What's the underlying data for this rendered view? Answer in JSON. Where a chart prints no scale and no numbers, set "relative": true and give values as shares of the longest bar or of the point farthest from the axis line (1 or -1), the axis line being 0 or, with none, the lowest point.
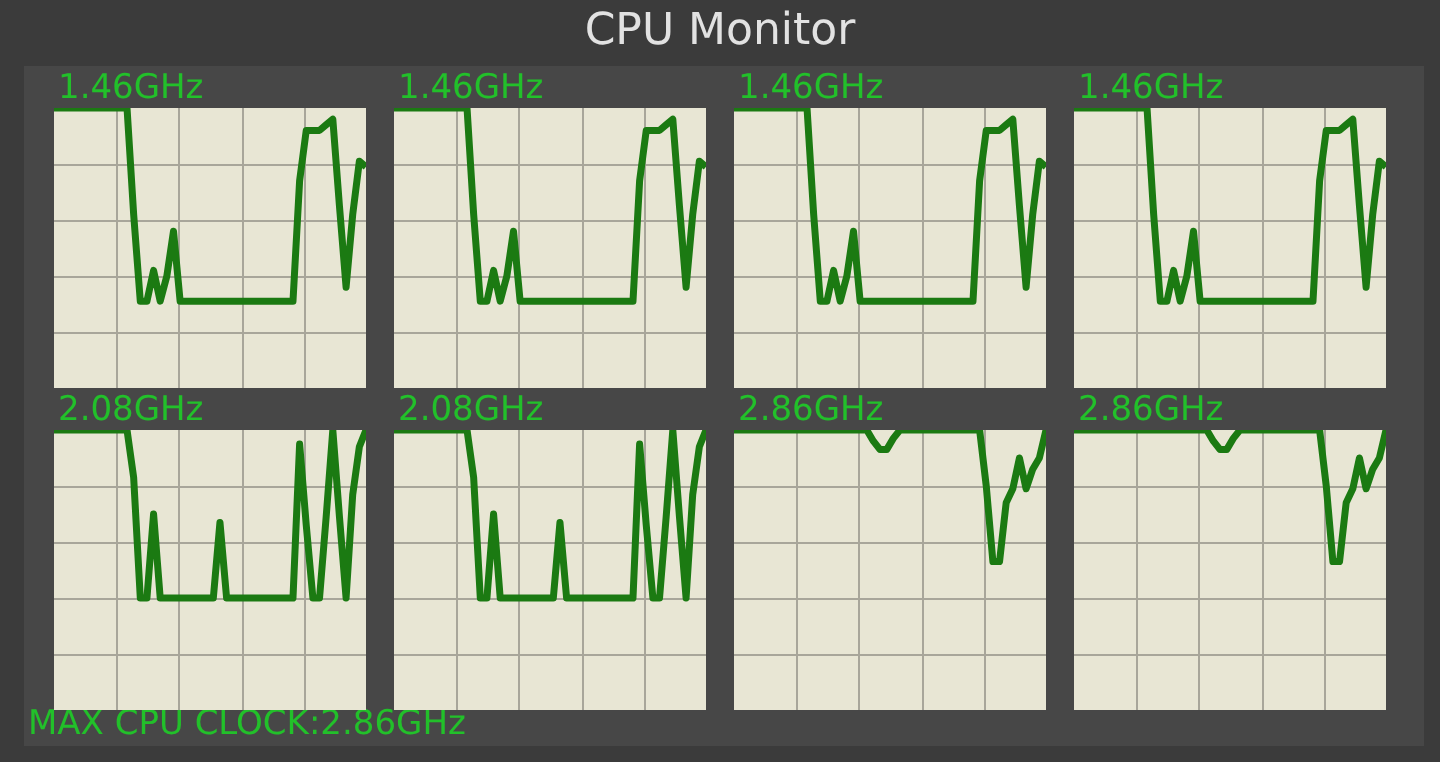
{
  "chart_data": [
    {
      "type": "other",
      "title": "CPU Monitor",
      "annotations": [
        "MAX CPU CLOCK:2.86GHz"
      ]
    },
    {
      "type": "line",
      "title": "1.46GHz",
      "relative": true,
      "grid": true,
      "marker": "none",
      "color": "#1b7a12",
      "categories": [
        null,
        null,
        null,
        null,
        null,
        null,
        null,
        null,
        null,
        null,
        null,
        null,
        null,
        null,
        null,
        null,
        null,
        null,
        null,
        null,
        null,
        null,
        null,
        null,
        null,
        null,
        null,
        null,
        null,
        null,
        null,
        null,
        null,
        null,
        null,
        null,
        null,
        null,
        null,
        null,
        null,
        null,
        null,
        null,
        null,
        null,
        null,
        null
      ],
      "values": [
        1,
        1,
        1,
        1,
        1,
        1,
        1,
        1,
        1,
        1,
        1,
        1,
        0.62,
        0.31,
        0.31,
        0.42,
        0.31,
        0.4,
        0.56,
        0.31,
        0.31,
        0.31,
        0.31,
        0.31,
        0.31,
        0.31,
        0.31,
        0.31,
        0.31,
        0.31,
        0.31,
        0.31,
        0.31,
        0.31,
        0.31,
        0.31,
        0.31,
        0.74,
        0.92,
        0.92,
        0.92,
        0.94,
        0.96,
        0.65,
        0.36,
        0.62,
        0.81,
        0.79
      ]
    },
    {
      "type": "line",
      "title": "1.46GHz",
      "relative": true,
      "grid": true,
      "marker": "none",
      "color": "#1b7a12",
      "categories": [
        null,
        null,
        null,
        null,
        null,
        null,
        null,
        null,
        null,
        null,
        null,
        null,
        null,
        null,
        null,
        null,
        null,
        null,
        null,
        null,
        null,
        null,
        null,
        null,
        null,
        null,
        null,
        null,
        null,
        null,
        null,
        null,
        null,
        null,
        null,
        null,
        null,
        null,
        null,
        null,
        null,
        null,
        null,
        null,
        null,
        null,
        null,
        null
      ],
      "values": [
        1,
        1,
        1,
        1,
        1,
        1,
        1,
        1,
        1,
        1,
        1,
        1,
        0.62,
        0.31,
        0.31,
        0.42,
        0.31,
        0.4,
        0.56,
        0.31,
        0.31,
        0.31,
        0.31,
        0.31,
        0.31,
        0.31,
        0.31,
        0.31,
        0.31,
        0.31,
        0.31,
        0.31,
        0.31,
        0.31,
        0.31,
        0.31,
        0.31,
        0.74,
        0.92,
        0.92,
        0.92,
        0.94,
        0.96,
        0.65,
        0.36,
        0.62,
        0.81,
        0.79
      ]
    },
    {
      "type": "line",
      "title": "1.46GHz",
      "relative": true,
      "grid": true,
      "marker": "none",
      "color": "#1b7a12",
      "categories": [
        null,
        null,
        null,
        null,
        null,
        null,
        null,
        null,
        null,
        null,
        null,
        null,
        null,
        null,
        null,
        null,
        null,
        null,
        null,
        null,
        null,
        null,
        null,
        null,
        null,
        null,
        null,
        null,
        null,
        null,
        null,
        null,
        null,
        null,
        null,
        null,
        null,
        null,
        null,
        null,
        null,
        null,
        null,
        null,
        null,
        null,
        null,
        null
      ],
      "values": [
        1,
        1,
        1,
        1,
        1,
        1,
        1,
        1,
        1,
        1,
        1,
        1,
        0.62,
        0.31,
        0.31,
        0.42,
        0.31,
        0.4,
        0.56,
        0.31,
        0.31,
        0.31,
        0.31,
        0.31,
        0.31,
        0.31,
        0.31,
        0.31,
        0.31,
        0.31,
        0.31,
        0.31,
        0.31,
        0.31,
        0.31,
        0.31,
        0.31,
        0.74,
        0.92,
        0.92,
        0.92,
        0.94,
        0.96,
        0.65,
        0.36,
        0.62,
        0.81,
        0.79
      ]
    },
    {
      "type": "line",
      "title": "1.46GHz",
      "relative": true,
      "grid": true,
      "marker": "none",
      "color": "#1b7a12",
      "categories": [
        null,
        null,
        null,
        null,
        null,
        null,
        null,
        null,
        null,
        null,
        null,
        null,
        null,
        null,
        null,
        null,
        null,
        null,
        null,
        null,
        null,
        null,
        null,
        null,
        null,
        null,
        null,
        null,
        null,
        null,
        null,
        null,
        null,
        null,
        null,
        null,
        null,
        null,
        null,
        null,
        null,
        null,
        null,
        null,
        null,
        null,
        null,
        null
      ],
      "values": [
        1,
        1,
        1,
        1,
        1,
        1,
        1,
        1,
        1,
        1,
        1,
        1,
        0.62,
        0.31,
        0.31,
        0.42,
        0.31,
        0.4,
        0.56,
        0.31,
        0.31,
        0.31,
        0.31,
        0.31,
        0.31,
        0.31,
        0.31,
        0.31,
        0.31,
        0.31,
        0.31,
        0.31,
        0.31,
        0.31,
        0.31,
        0.31,
        0.31,
        0.74,
        0.92,
        0.92,
        0.92,
        0.94,
        0.96,
        0.65,
        0.36,
        0.62,
        0.81,
        0.79
      ]
    },
    {
      "type": "line",
      "title": "2.08GHz",
      "relative": true,
      "grid": true,
      "marker": "none",
      "color": "#1b7a12",
      "categories": [
        null,
        null,
        null,
        null,
        null,
        null,
        null,
        null,
        null,
        null,
        null,
        null,
        null,
        null,
        null,
        null,
        null,
        null,
        null,
        null,
        null,
        null,
        null,
        null,
        null,
        null,
        null,
        null,
        null,
        null,
        null,
        null,
        null,
        null,
        null,
        null,
        null,
        null,
        null,
        null,
        null,
        null,
        null,
        null,
        null,
        null,
        null,
        null
      ],
      "values": [
        1,
        1,
        1,
        1,
        1,
        1,
        1,
        1,
        1,
        1,
        1,
        1,
        0.83,
        0.4,
        0.4,
        0.7,
        0.4,
        0.4,
        0.4,
        0.4,
        0.4,
        0.4,
        0.4,
        0.4,
        0.4,
        0.67,
        0.4,
        0.4,
        0.4,
        0.4,
        0.4,
        0.4,
        0.4,
        0.4,
        0.4,
        0.4,
        0.4,
        0.95,
        0.66,
        0.4,
        0.4,
        0.69,
        1,
        0.69,
        0.4,
        0.77,
        0.94,
        1
      ]
    },
    {
      "type": "line",
      "title": "2.08GHz",
      "relative": true,
      "grid": true,
      "marker": "none",
      "color": "#1b7a12",
      "categories": [
        null,
        null,
        null,
        null,
        null,
        null,
        null,
        null,
        null,
        null,
        null,
        null,
        null,
        null,
        null,
        null,
        null,
        null,
        null,
        null,
        null,
        null,
        null,
        null,
        null,
        null,
        null,
        null,
        null,
        null,
        null,
        null,
        null,
        null,
        null,
        null,
        null,
        null,
        null,
        null,
        null,
        null,
        null,
        null,
        null,
        null,
        null,
        null
      ],
      "values": [
        1,
        1,
        1,
        1,
        1,
        1,
        1,
        1,
        1,
        1,
        1,
        1,
        0.83,
        0.4,
        0.4,
        0.7,
        0.4,
        0.4,
        0.4,
        0.4,
        0.4,
        0.4,
        0.4,
        0.4,
        0.4,
        0.67,
        0.4,
        0.4,
        0.4,
        0.4,
        0.4,
        0.4,
        0.4,
        0.4,
        0.4,
        0.4,
        0.4,
        0.95,
        0.66,
        0.4,
        0.4,
        0.69,
        1,
        0.69,
        0.4,
        0.77,
        0.94,
        1
      ]
    },
    {
      "type": "line",
      "title": "2.86GHz",
      "relative": true,
      "grid": true,
      "marker": "none",
      "color": "#1b7a12",
      "categories": [
        null,
        null,
        null,
        null,
        null,
        null,
        null,
        null,
        null,
        null,
        null,
        null,
        null,
        null,
        null,
        null,
        null,
        null,
        null,
        null,
        null,
        null,
        null,
        null,
        null,
        null,
        null,
        null,
        null,
        null,
        null,
        null,
        null,
        null,
        null,
        null,
        null,
        null,
        null,
        null,
        null,
        null,
        null,
        null,
        null,
        null,
        null,
        null
      ],
      "values": [
        1,
        1,
        1,
        1,
        1,
        1,
        1,
        1,
        1,
        1,
        1,
        1,
        1,
        1,
        1,
        1,
        1,
        1,
        1,
        1,
        1,
        0.96,
        0.93,
        0.93,
        0.97,
        1,
        1,
        1,
        1,
        1,
        1,
        1,
        1,
        1,
        1,
        1,
        1,
        1,
        0.8,
        0.53,
        0.53,
        0.74,
        0.79,
        0.9,
        0.79,
        0.86,
        0.9,
        1
      ]
    },
    {
      "type": "line",
      "title": "2.86GHz",
      "relative": true,
      "grid": true,
      "marker": "none",
      "color": "#1b7a12",
      "categories": [
        null,
        null,
        null,
        null,
        null,
        null,
        null,
        null,
        null,
        null,
        null,
        null,
        null,
        null,
        null,
        null,
        null,
        null,
        null,
        null,
        null,
        null,
        null,
        null,
        null,
        null,
        null,
        null,
        null,
        null,
        null,
        null,
        null,
        null,
        null,
        null,
        null,
        null,
        null,
        null,
        null,
        null,
        null,
        null,
        null,
        null,
        null,
        null
      ],
      "values": [
        1,
        1,
        1,
        1,
        1,
        1,
        1,
        1,
        1,
        1,
        1,
        1,
        1,
        1,
        1,
        1,
        1,
        1,
        1,
        1,
        1,
        0.96,
        0.93,
        0.93,
        0.97,
        1,
        1,
        1,
        1,
        1,
        1,
        1,
        1,
        1,
        1,
        1,
        1,
        1,
        0.8,
        0.53,
        0.53,
        0.74,
        0.79,
        0.9,
        0.79,
        0.86,
        0.9,
        1
      ]
    }
  ]
}
